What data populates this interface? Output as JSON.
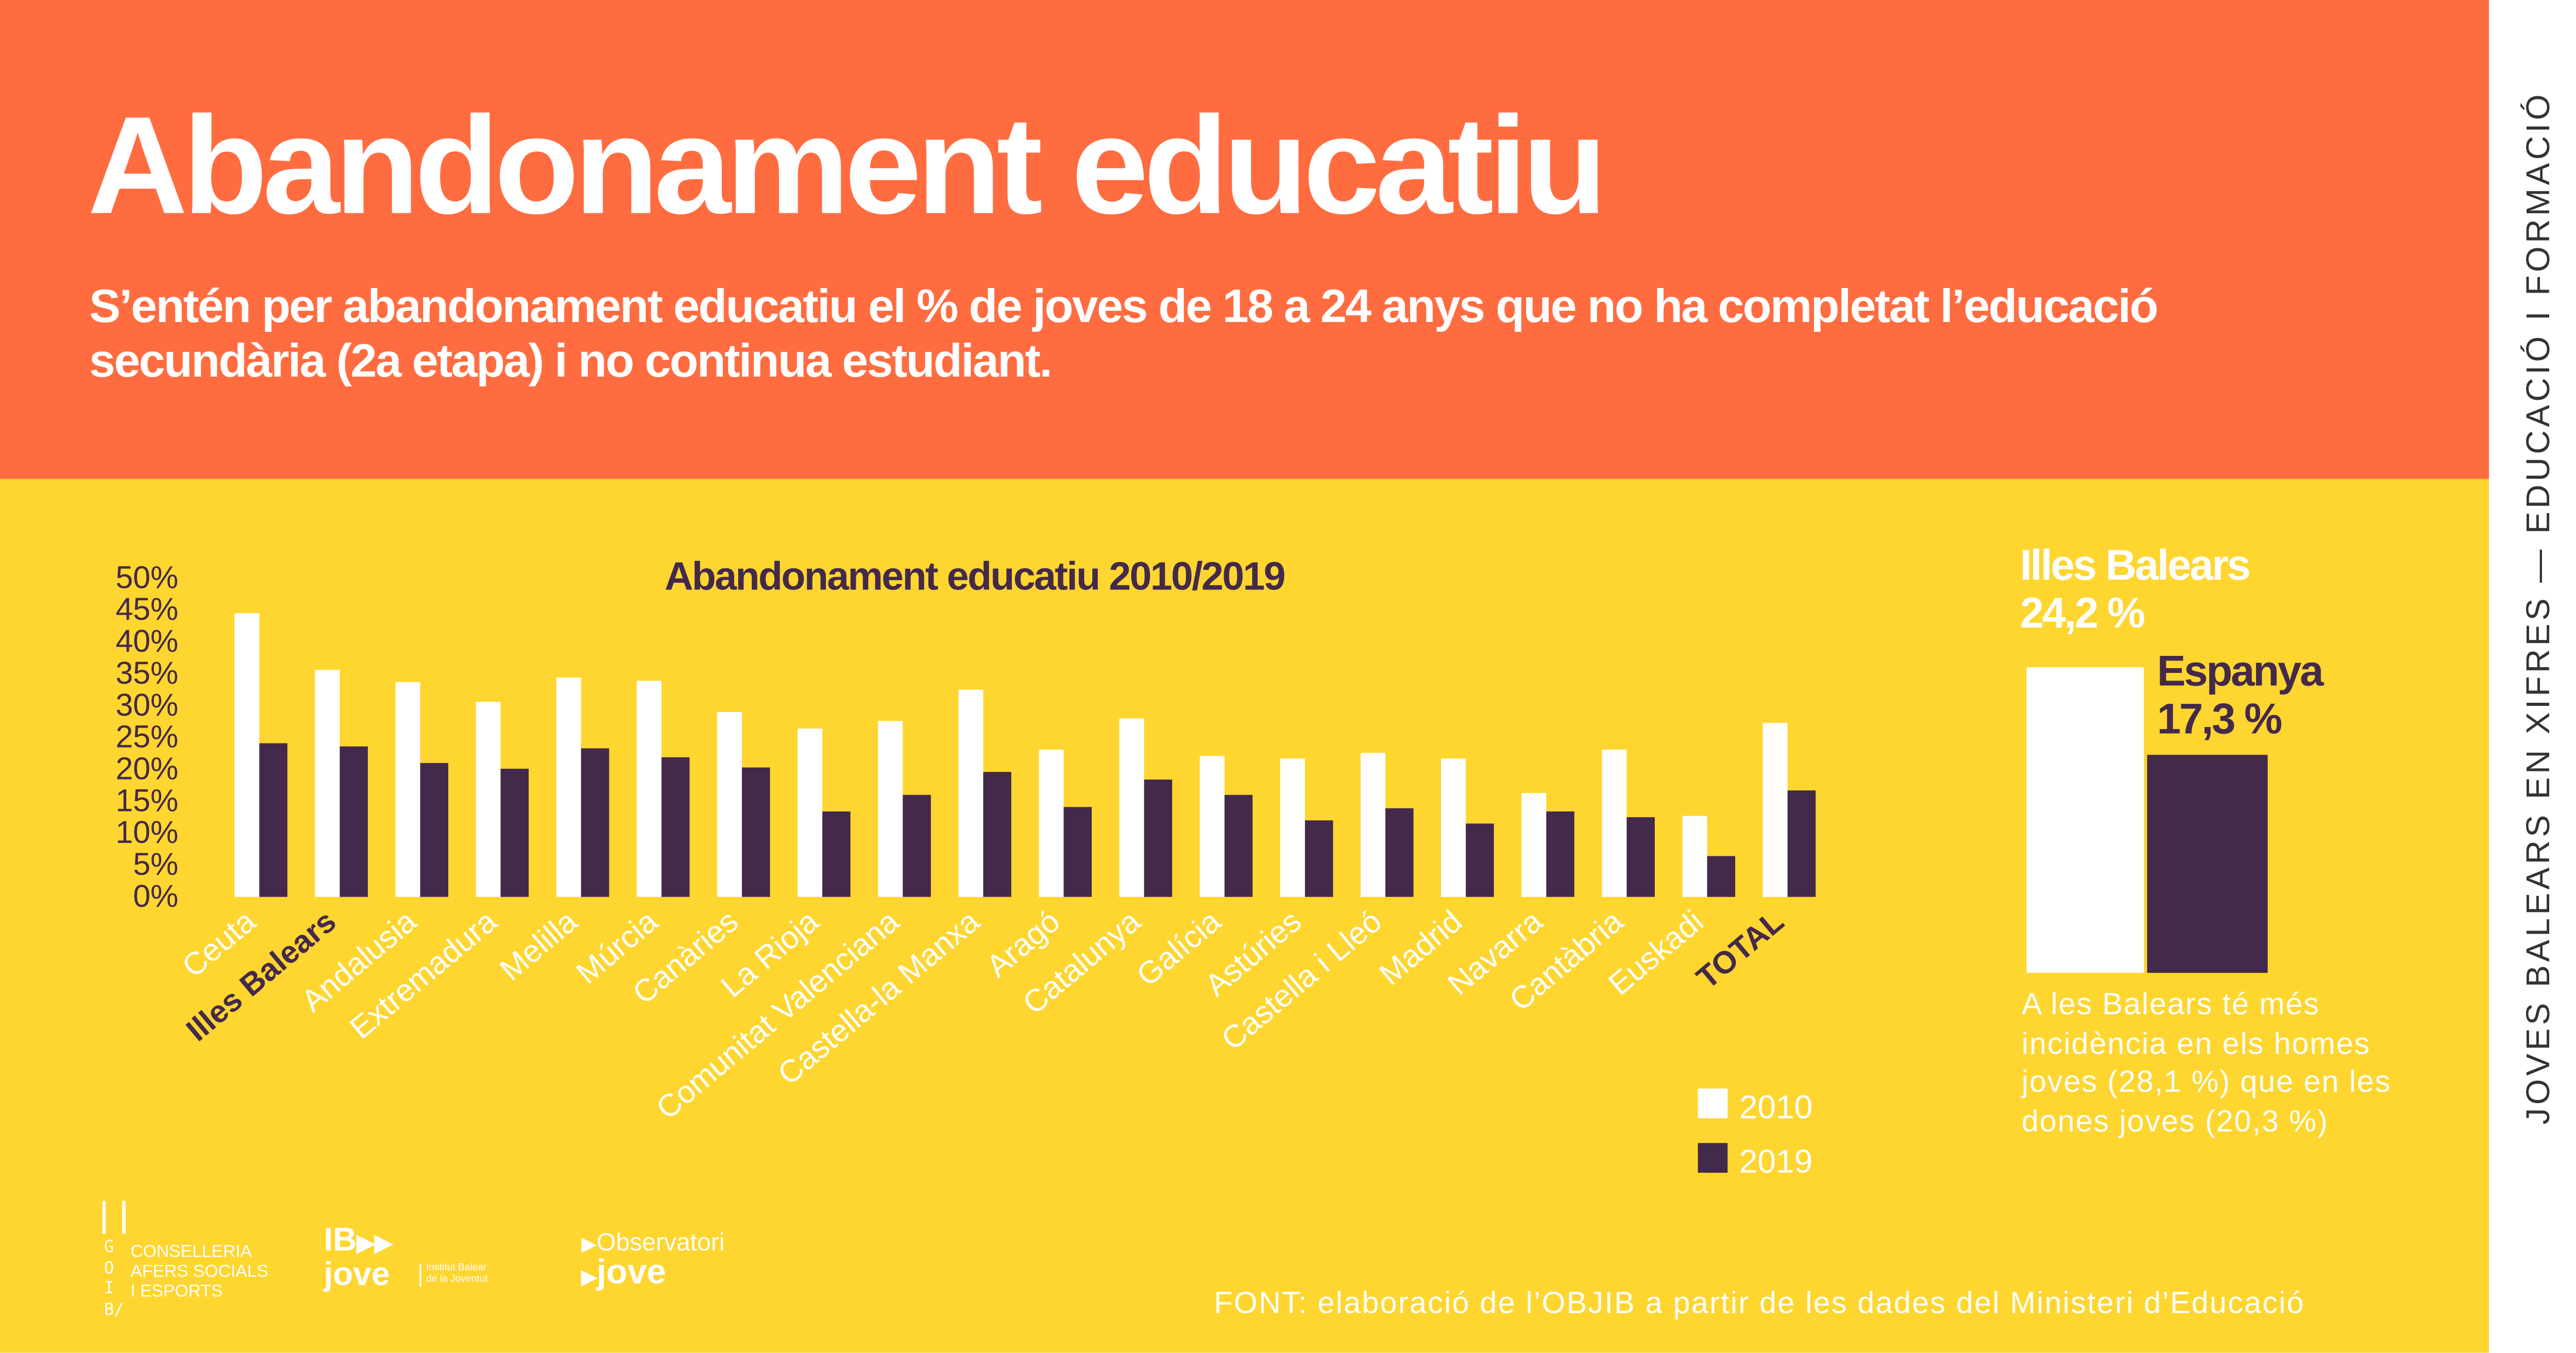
{
  "header": {
    "title": "Abandonament educatiu",
    "subtitle": "S’entén per abandonament educatiu el % de joves de 18 a 24 anys que no ha completat l’educació secundària (2a etapa) i no continua estudiant."
  },
  "side_strip": "JOVES BALEARS EN XIFRES — EDUCACIÓ I FORMACIÓ",
  "colors": {
    "header_bg": "#FF6C40",
    "body_bg": "#FFD530",
    "series_2010": "#FFFFFF",
    "series_2019": "#43294A"
  },
  "chart_data": {
    "type": "bar",
    "title": "Abandonament educatiu 2010/2019",
    "categories": [
      "Ceuta",
      "Illes Balears",
      "Andalusia",
      "Extremadura",
      "Melilla",
      "Múrcia",
      "Canàries",
      "La Rioja",
      "Comunitat Valenciana",
      "Castella-la Manxa",
      "Aragó",
      "Catalunya",
      "Galícia",
      "Astúries",
      "Castella i Lleó",
      "Madrid",
      "Navarra",
      "Cantàbria",
      "Euskadi",
      "TOTAL"
    ],
    "highlighted_categories": [
      "Illes Balears",
      "TOTAL"
    ],
    "series": [
      {
        "name": "2010",
        "color": "#FFFFFF",
        "values": [
          44.5,
          35.6,
          33.7,
          30.6,
          34.4,
          33.9,
          29.0,
          26.4,
          27.6,
          32.5,
          23.1,
          28.0,
          22.1,
          21.7,
          22.6,
          21.7,
          16.3,
          23.1,
          12.7,
          27.3
        ]
      },
      {
        "name": "2019",
        "color": "#43294A",
        "values": [
          24.1,
          23.6,
          21.0,
          20.1,
          23.3,
          21.9,
          20.3,
          13.4,
          16.0,
          19.6,
          14.1,
          18.4,
          16.0,
          12.0,
          13.9,
          11.5,
          13.4,
          12.5,
          6.4,
          16.7
        ]
      }
    ],
    "yticks": [
      "0%",
      "5%",
      "10%",
      "15%",
      "20%",
      "25%",
      "30%",
      "35%",
      "40%",
      "45%",
      "50%"
    ],
    "ylim": [
      0,
      50
    ],
    "grid": false,
    "legend_position": "bottom-right"
  },
  "comparison": {
    "items": [
      {
        "label": "Illes Balears",
        "value_text": "24,2 %",
        "value": 24.2,
        "color": "#FFFFFF"
      },
      {
        "label": "Espanya",
        "value_text": "17,3 %",
        "value": 17.3,
        "color": "#43294A"
      }
    ],
    "note": "A les Balears té més incidència en els homes joves (28,1 %) que en les dones joves (20,3 %)"
  },
  "source": "FONT: elaboració de l’OBJIB a partir de les dades del Ministeri d’Educació",
  "logos": {
    "goib_letters": "GOIB/",
    "conselleria": [
      "CONSELLERIA",
      "AFERS SOCIALS",
      "I ESPORTS"
    ],
    "ibjove": {
      "mark": "IB",
      "word": "jove",
      "caption": [
        "Institut Balear",
        "de la Joventut"
      ]
    },
    "observatori": {
      "line1": "Observatori",
      "line2": "jove"
    }
  }
}
